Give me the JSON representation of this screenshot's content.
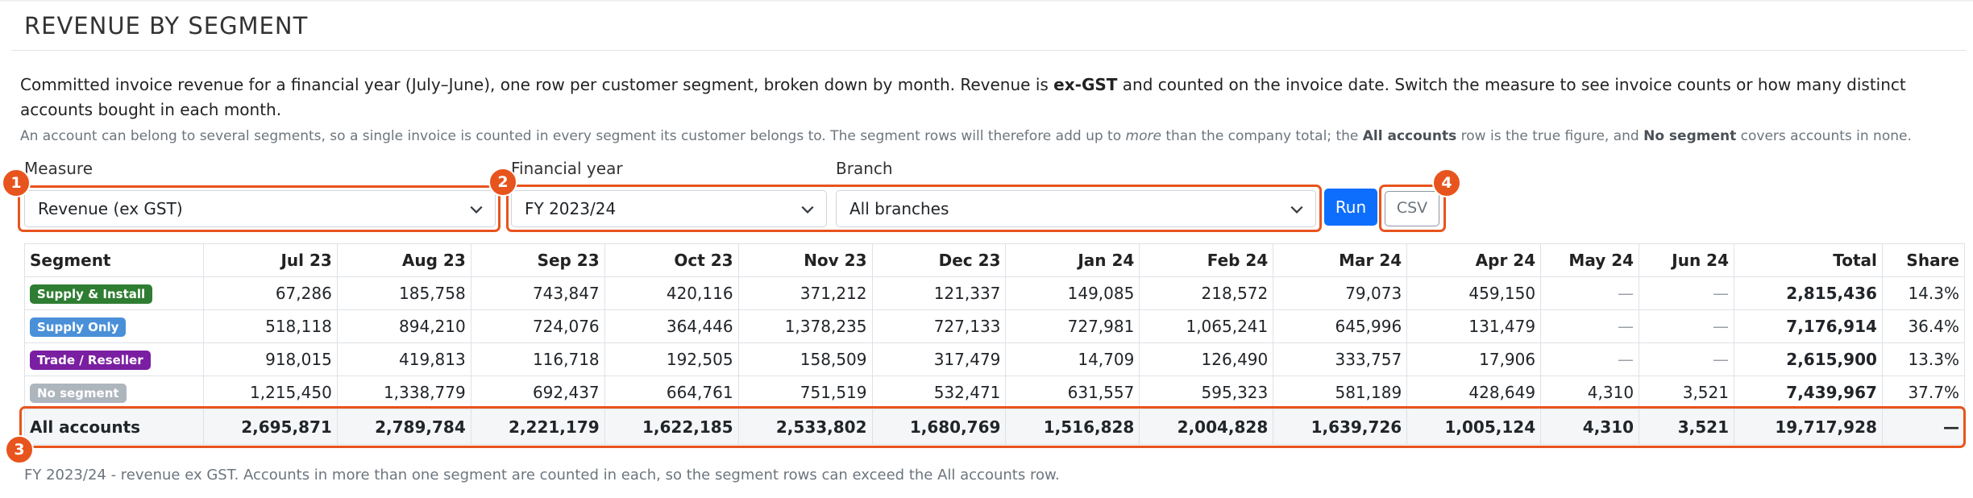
{
  "page": {
    "title": "REVENUE BY SEGMENT",
    "desc_part1": "Committed invoice revenue for a financial year (July–June), one row per customer segment, broken down by month. Revenue is ",
    "desc_bold": "ex-GST",
    "desc_part2": " and counted on the invoice date. Switch the measure to see invoice counts or how many distinct accounts bought in each month.",
    "note_part1": "An account can belong to several segments, so a single invoice is counted in every segment its customer belongs to. The segment rows will therefore add up to ",
    "note_italic": "more",
    "note_part2": " than the company total; the ",
    "note_bold1": "All accounts",
    "note_part3": " row is the true figure, and ",
    "note_bold2": "No segment",
    "note_part4": " covers accounts in none.",
    "footnote": "FY 2023/24 - revenue ex GST. Accounts in more than one segment are counted in each, so the segment rows can exceed the All accounts row."
  },
  "filters": {
    "measure_label": "Measure",
    "measure_value": "Revenue (ex GST)",
    "fy_label": "Financial year",
    "fy_value": "FY 2023/24",
    "branch_label": "Branch",
    "branch_value": "All branches",
    "run_label": "Run",
    "csv_label": "CSV"
  },
  "badges": [
    "1",
    "2",
    "3",
    "4"
  ],
  "table": {
    "headers": [
      "Segment",
      "Jul 23",
      "Aug 23",
      "Sep 23",
      "Oct 23",
      "Nov 23",
      "Dec 23",
      "Jan 24",
      "Feb 24",
      "Mar 24",
      "Apr 24",
      "May 24",
      "Jun 24",
      "Total",
      "Share"
    ],
    "rows": [
      {
        "segment": "Supply & Install",
        "color": "#2e7d32",
        "values": [
          "67,286",
          "185,758",
          "743,847",
          "420,116",
          "371,212",
          "121,337",
          "149,085",
          "218,572",
          "79,073",
          "459,150",
          "—",
          "—"
        ],
        "total": "2,815,436",
        "share": "14.3%"
      },
      {
        "segment": "Supply Only",
        "color": "#4a90d9",
        "values": [
          "518,118",
          "894,210",
          "724,076",
          "364,446",
          "1,378,235",
          "727,133",
          "727,981",
          "1,065,241",
          "645,996",
          "131,479",
          "—",
          "—"
        ],
        "total": "7,176,914",
        "share": "36.4%"
      },
      {
        "segment": "Trade / Reseller",
        "color": "#7b1fa2",
        "values": [
          "918,015",
          "419,813",
          "116,718",
          "192,505",
          "158,509",
          "317,479",
          "14,709",
          "126,490",
          "333,757",
          "17,906",
          "—",
          "—"
        ],
        "total": "2,615,900",
        "share": "13.3%"
      },
      {
        "segment": "No segment",
        "color": "#adb5bd",
        "values": [
          "1,215,450",
          "1,338,779",
          "692,437",
          "664,761",
          "751,519",
          "532,471",
          "631,557",
          "595,323",
          "581,189",
          "428,649",
          "4,310",
          "3,521"
        ],
        "total": "7,439,967",
        "share": "37.7%"
      }
    ],
    "all_row": {
      "label": "All accounts",
      "values": [
        "2,695,871",
        "2,789,784",
        "2,221,179",
        "1,622,185",
        "2,533,802",
        "1,680,769",
        "1,516,828",
        "2,004,828",
        "1,639,726",
        "1,005,124",
        "4,310",
        "3,521"
      ],
      "total": "19,717,928",
      "share": "—"
    }
  },
  "colors": {
    "accent": "#0d6efd",
    "highlight": "#e8541d"
  }
}
